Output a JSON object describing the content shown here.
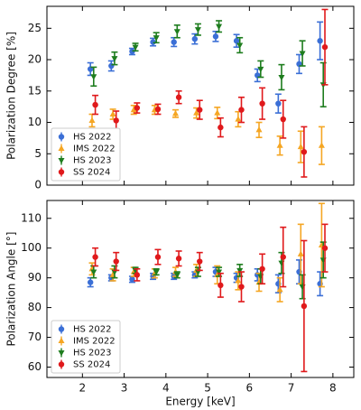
{
  "chart_data": [
    {
      "type": "errorbar",
      "ylabel": "Polarization Degree [%]",
      "x": [
        2.25,
        2.75,
        3.25,
        3.75,
        4.25,
        4.75,
        5.25,
        5.75,
        6.25,
        6.75,
        7.25,
        7.75
      ],
      "xlim": [
        1.15,
        8.5
      ],
      "xticks": [
        2,
        3,
        4,
        5,
        6,
        7,
        8
      ],
      "show_xtick_labels": false,
      "ylim": [
        0,
        28.5
      ],
      "yticks": [
        0,
        5,
        10,
        15,
        20,
        25
      ],
      "legend": "lower left",
      "series": [
        {
          "name": "HS 2022",
          "color": "#3b6fd6",
          "marker": "circle",
          "values": [
            18.5,
            19,
            21.3,
            22.8,
            22.8,
            23.3,
            23.7,
            23,
            17.5,
            13,
            19.3,
            23
          ],
          "errors": [
            1,
            0.8,
            0.5,
            0.6,
            0.7,
            0.8,
            0.8,
            1,
            1,
            1.5,
            1.5,
            3
          ]
        },
        {
          "name": "IMS 2022",
          "color": "#f5a623",
          "marker": "triangle-up",
          "values": [
            10.3,
            11.3,
            12,
            12,
            11.4,
            11.5,
            11.5,
            10.5,
            8.8,
            6.3,
            6.1,
            6.3
          ],
          "errors": [
            1,
            0.8,
            0.7,
            0.7,
            0.6,
            0.8,
            0.9,
            1.2,
            1.2,
            1.5,
            2.5,
            3
          ]
        },
        {
          "name": "HS 2023",
          "color": "#1e7d1e",
          "marker": "triangle-down",
          "values": [
            17.3,
            20.2,
            22,
            23.5,
            24.5,
            24.8,
            25.3,
            22.3,
            18.5,
            17.2,
            21,
            16
          ],
          "errors": [
            1.5,
            1,
            0.6,
            0.8,
            1,
            0.9,
            0.9,
            1.2,
            1.3,
            2,
            2,
            3.5
          ]
        },
        {
          "name": "SS 2024",
          "color": "#e0191b",
          "marker": "circle",
          "values": [
            12.8,
            10.3,
            12.3,
            12.1,
            14,
            12,
            9.2,
            12,
            13,
            10.5,
            5.3,
            22
          ],
          "errors": [
            1.5,
            1.5,
            0.8,
            0.8,
            1,
            1.5,
            1.5,
            2,
            2.5,
            3,
            4,
            6
          ]
        }
      ]
    },
    {
      "type": "errorbar",
      "ylabel": "Polarization Angle [°]",
      "xlabel": "Energy [keV]",
      "x": [
        2.25,
        2.75,
        3.25,
        3.75,
        4.25,
        4.75,
        5.25,
        5.75,
        6.25,
        6.75,
        7.25,
        7.75
      ],
      "xlim": [
        1.15,
        8.5
      ],
      "xticks": [
        2,
        3,
        4,
        5,
        6,
        7,
        8
      ],
      "show_xtick_labels": true,
      "ylim": [
        56.5,
        116
      ],
      "yticks": [
        60,
        70,
        80,
        90,
        100,
        110
      ],
      "legend": "lower left",
      "series": [
        {
          "name": "HS 2022",
          "color": "#3b6fd6",
          "marker": "circle",
          "values": [
            88.5,
            90,
            89.5,
            90.5,
            90.5,
            91,
            92,
            90,
            91,
            88,
            92,
            88
          ],
          "errors": [
            1.5,
            1,
            1,
            1,
            1,
            1,
            1.5,
            1.5,
            2,
            3,
            4,
            4
          ]
        },
        {
          "name": "IMS 2022",
          "color": "#f5a623",
          "marker": "triangle-up",
          "values": [
            93,
            91,
            92,
            91.5,
            92,
            92.5,
            91,
            89,
            88.5,
            86,
            98,
            101
          ],
          "errors": [
            2,
            2,
            1.5,
            1.5,
            1.5,
            2,
            3,
            3,
            3,
            4,
            10,
            14
          ]
        },
        {
          "name": "HS 2023",
          "color": "#1e7d1e",
          "marker": "triangle-down",
          "values": [
            92,
            92,
            92.5,
            92,
            91,
            92,
            92,
            92.5,
            90.5,
            95,
            87,
            96
          ],
          "errors": [
            2,
            2,
            1,
            1,
            1,
            1.5,
            1.5,
            2,
            2.5,
            3.5,
            4,
            6
          ]
        },
        {
          "name": "SS 2024",
          "color": "#e0191b",
          "marker": "circle",
          "values": [
            97,
            95.5,
            91,
            97,
            96.5,
            95.5,
            87.5,
            87,
            93,
            97,
            80.5,
            100
          ],
          "errors": [
            3,
            3,
            2,
            2.5,
            2.5,
            3,
            4,
            5,
            5,
            10,
            22,
            8
          ]
        }
      ]
    }
  ]
}
